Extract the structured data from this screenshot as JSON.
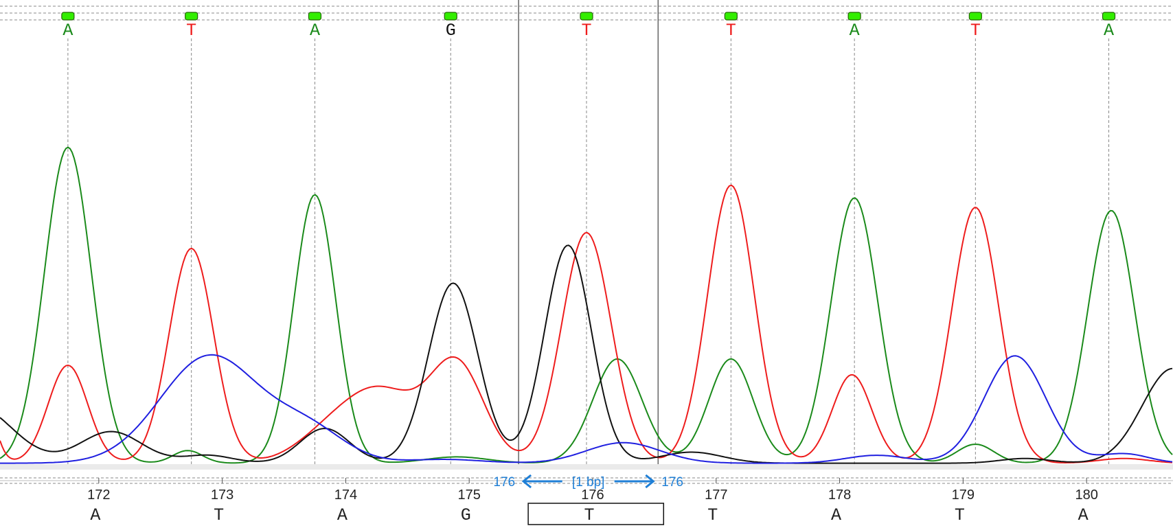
{
  "colors": {
    "A": "#1a8a1a",
    "C": "#1f1fe0",
    "G": "#111111",
    "T": "#ee1c1c",
    "marker": "#33ee00",
    "selection": "#1f7fd6",
    "grid": "#888888"
  },
  "chart_data": {
    "type": "line",
    "xlim": [
      171.2,
      180.7
    ],
    "ylim": [
      0,
      100
    ],
    "called_bases": [
      {
        "x": 171.75,
        "base": "A"
      },
      {
        "x": 172.75,
        "base": "T"
      },
      {
        "x": 173.75,
        "base": "A"
      },
      {
        "x": 174.85,
        "base": "G"
      },
      {
        "x": 175.95,
        "base": "T"
      },
      {
        "x": 177.12,
        "base": "T"
      },
      {
        "x": 178.12,
        "base": "A"
      },
      {
        "x": 179.1,
        "base": "T"
      },
      {
        "x": 180.18,
        "base": "A"
      }
    ],
    "positions": [
      {
        "x": 172,
        "label": "172",
        "base": "A"
      },
      {
        "x": 173,
        "label": "173",
        "base": "T"
      },
      {
        "x": 174,
        "label": "174",
        "base": "A"
      },
      {
        "x": 175,
        "label": "175",
        "base": "G"
      },
      {
        "x": 176,
        "label": "176",
        "base": "T"
      },
      {
        "x": 177,
        "label": "177",
        "base": "T"
      },
      {
        "x": 178,
        "label": "178",
        "base": "A"
      },
      {
        "x": 179,
        "label": "179",
        "base": "T"
      },
      {
        "x": 180,
        "label": "180",
        "base": "A"
      }
    ],
    "selection": {
      "from": 175.4,
      "to": 176.53,
      "start_label": "176",
      "end_label": "176",
      "size_label": "[1 bp]"
    },
    "series": [
      {
        "base": "A",
        "peaks": [
          {
            "x": 171.75,
            "h": 100,
            "w": 0.19
          },
          {
            "x": 172.72,
            "h": 4,
            "w": 0.12
          },
          {
            "x": 173.75,
            "h": 85,
            "w": 0.17
          },
          {
            "x": 174.9,
            "h": 2,
            "w": 0.25
          },
          {
            "x": 176.2,
            "h": 33,
            "w": 0.2
          },
          {
            "x": 177.12,
            "h": 33,
            "w": 0.18
          },
          {
            "x": 178.12,
            "h": 84,
            "w": 0.19
          },
          {
            "x": 179.1,
            "h": 6,
            "w": 0.15
          },
          {
            "x": 180.2,
            "h": 80,
            "w": 0.19
          }
        ]
      },
      {
        "base": "T",
        "peaks": [
          {
            "x": 171.03,
            "h": 30,
            "w": 0.1
          },
          {
            "x": 171.75,
            "h": 31,
            "w": 0.16
          },
          {
            "x": 172.75,
            "h": 68,
            "w": 0.18
          },
          {
            "x": 173.9,
            "h": 10,
            "w": 0.28
          },
          {
            "x": 174.32,
            "h": 20,
            "w": 0.28
          },
          {
            "x": 174.9,
            "h": 31,
            "w": 0.22
          },
          {
            "x": 175.95,
            "h": 73,
            "w": 0.2
          },
          {
            "x": 177.12,
            "h": 88,
            "w": 0.19
          },
          {
            "x": 178.1,
            "h": 28,
            "w": 0.16
          },
          {
            "x": 179.1,
            "h": 81,
            "w": 0.19
          },
          {
            "x": 180.3,
            "h": 1.5,
            "w": 0.2
          }
        ]
      },
      {
        "base": "G",
        "peaks": [
          {
            "x": 171.0,
            "h": 18,
            "w": 0.3
          },
          {
            "x": 172.1,
            "h": 10,
            "w": 0.25
          },
          {
            "x": 172.88,
            "h": 2.5,
            "w": 0.2
          },
          {
            "x": 173.83,
            "h": 11,
            "w": 0.2
          },
          {
            "x": 174.87,
            "h": 57,
            "w": 0.2
          },
          {
            "x": 175.8,
            "h": 69,
            "w": 0.19
          },
          {
            "x": 176.8,
            "h": 3.5,
            "w": 0.25
          },
          {
            "x": 179.5,
            "h": 1.5,
            "w": 0.2
          },
          {
            "x": 180.7,
            "h": 30,
            "w": 0.25
          }
        ]
      },
      {
        "base": "C",
        "peaks": [
          {
            "x": 172.9,
            "h": 34,
            "w": 0.4
          },
          {
            "x": 173.7,
            "h": 10,
            "w": 0.3
          },
          {
            "x": 174.8,
            "h": 1.2,
            "w": 0.3
          },
          {
            "x": 176.25,
            "h": 6.5,
            "w": 0.3
          },
          {
            "x": 178.3,
            "h": 2.5,
            "w": 0.25
          },
          {
            "x": 179.42,
            "h": 34,
            "w": 0.25
          },
          {
            "x": 180.3,
            "h": 3,
            "w": 0.2
          }
        ]
      }
    ]
  }
}
